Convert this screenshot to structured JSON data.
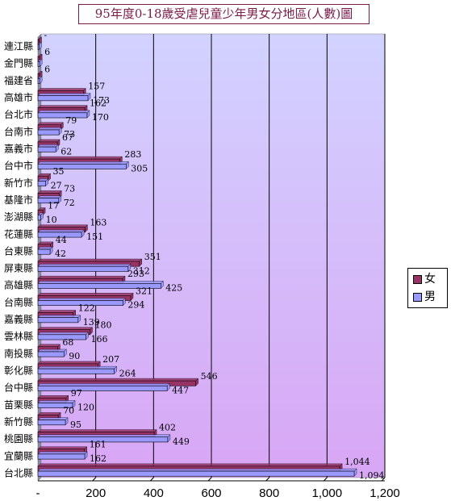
{
  "chart_data": {
    "type": "bar",
    "orientation": "horizontal",
    "title": "95年度0-18歲受虐兒童少年男女分地區(人數)圖",
    "categories": [
      "連江縣",
      "金門縣",
      "福建省",
      "高雄市",
      "台北市",
      "台南市",
      "嘉義市",
      "台中市",
      "新竹市",
      "基隆市",
      "澎湖縣",
      "花蓮縣",
      "台東縣",
      "屏東縣",
      "高雄縣",
      "台南縣",
      "嘉義縣",
      "雲林縣",
      "南投縣",
      "彰化縣",
      "台中縣",
      "苗栗縣",
      "新竹縣",
      "桃園縣",
      "宜蘭縣",
      "台北縣"
    ],
    "series": [
      {
        "name": "女",
        "color": "#993366",
        "values": [
          0,
          6,
          6,
          157,
          162,
          79,
          67,
          283,
          35,
          73,
          17,
          163,
          44,
          351,
          293,
          321,
          122,
          180,
          68,
          207,
          546,
          97,
          70,
          402,
          161,
          1044
        ],
        "labels": [
          "-",
          "6",
          "6",
          "157",
          "162",
          "79",
          "67",
          "283",
          "35",
          "73",
          "17",
          "163",
          "44",
          "351",
          "293",
          "321",
          "122",
          "180",
          "68",
          "207",
          "546",
          "97",
          "70",
          "402",
          "161",
          "1,044"
        ]
      },
      {
        "name": "男",
        "color": "#9999ff",
        "values": [
          0,
          6,
          6,
          173,
          170,
          73,
          62,
          305,
          27,
          72,
          10,
          151,
          42,
          312,
          425,
          294,
          139,
          166,
          90,
          264,
          447,
          120,
          95,
          449,
          162,
          1094
        ],
        "labels": [
          "",
          "",
          "",
          "173",
          "170",
          "73",
          "62",
          "305",
          "27",
          "72",
          "10",
          "151",
          "42",
          "312",
          "425",
          "294",
          "139",
          "166",
          "90",
          "264",
          "447",
          "120",
          "95",
          "449",
          "162",
          "1,094"
        ]
      }
    ],
    "xlim": [
      0,
      1200
    ],
    "xticks": [
      0,
      200,
      400,
      600,
      800,
      1000,
      1200
    ],
    "xtick_labels": [
      "-",
      "200",
      "400",
      "600",
      "800",
      "1,000",
      "1,200"
    ],
    "grid": true,
    "legend_position": "right"
  }
}
